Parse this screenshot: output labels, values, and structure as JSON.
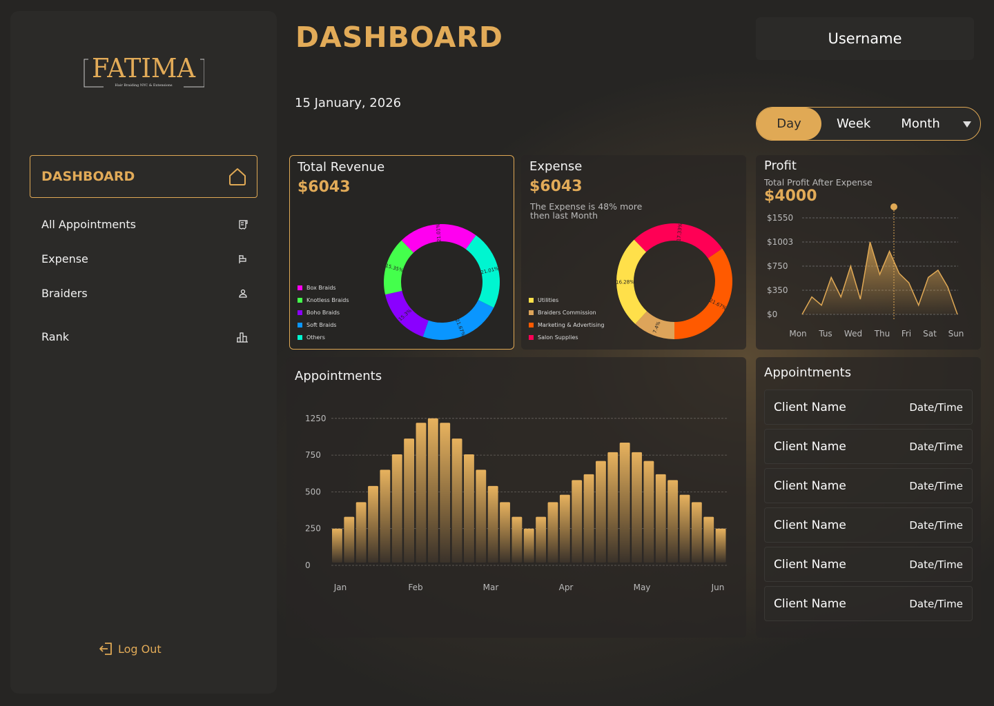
{
  "brand": {
    "logo_text": "FATIMA",
    "logo_tagline": "Hair Braiding NYC & Extensions"
  },
  "sidebar": {
    "active": "DASHBOARD",
    "items": [
      {
        "label": "All Appointments",
        "icon": "receipt-icon"
      },
      {
        "label": "Expense",
        "icon": "bars-icon"
      },
      {
        "label": "Braiders",
        "icon": "user-icon"
      },
      {
        "label": "Rank",
        "icon": "podium-icon"
      }
    ],
    "logout": "Log Out"
  },
  "header": {
    "title": "DASHBOARD",
    "date": "15 January, 2026",
    "username": "Username",
    "periods": [
      "Day",
      "Week",
      "Month"
    ],
    "selected_period": "Day"
  },
  "colors": {
    "accent": "#e0a955",
    "background": "#232221",
    "panel": "#2b2a28"
  },
  "revenue": {
    "title": "Total Revenue",
    "amount": "$6043"
  },
  "expense": {
    "title": "Expense",
    "amount": "$6043",
    "note_line1": "The Expense is 48% more",
    "note_line2": "then last Month"
  },
  "profit": {
    "title": "Profit",
    "subtitle": "Total Profit After Expense",
    "amount": "$4000"
  },
  "appointments_list": {
    "title": "Appointments",
    "rows": [
      {
        "name": "Client Name",
        "datetime": "Date/Time"
      },
      {
        "name": "Client Name",
        "datetime": "Date/Time"
      },
      {
        "name": "Client Name",
        "datetime": "Date/Time"
      },
      {
        "name": "Client Name",
        "datetime": "Date/Time"
      },
      {
        "name": "Client Name",
        "datetime": "Date/Time"
      },
      {
        "name": "Client Name",
        "datetime": "Date/Time"
      }
    ]
  },
  "chart_data": [
    {
      "type": "pie",
      "variant": "donut",
      "segments": [
        {
          "name": "Box Braids",
          "value": 21.01,
          "label": "21.01%",
          "color": "#ff00f0"
        },
        {
          "name": "Others",
          "value": 21.01,
          "label": "21.01%",
          "color": "#00f5d0"
        },
        {
          "name": "Soft Braids",
          "value": 21.67,
          "label": "21.67%",
          "color": "#0a96ff"
        },
        {
          "name": "Boho Braids",
          "value": 15.3,
          "label": "15.3%",
          "color": "#8a00ff"
        },
        {
          "name": "Knotless Braids",
          "value": 15.35,
          "label": "15.35%",
          "color": "#44ff4c"
        }
      ],
      "legend": [
        "Box Braids",
        "Knotless Braids",
        "Boho Braids",
        "Soft Braids",
        "Others"
      ],
      "legend_placement": "left"
    },
    {
      "type": "pie",
      "variant": "donut",
      "segments": [
        {
          "name": "Salon Supplies",
          "value": 17.33,
          "label": "17.33%",
          "color": "#ff0055"
        },
        {
          "name": "Marketing & Advertising",
          "value": 21.67,
          "label": "21.67%",
          "color": "#ff5a00"
        },
        {
          "name": "Braiders Commission",
          "value": 7.4,
          "label": "7.4%",
          "color": "#dda45a"
        },
        {
          "name": "Utilities",
          "value": 16.28,
          "label": "16.28%",
          "color": "#ffe04a"
        }
      ],
      "legend": [
        "Utilities",
        "Braiders Commission",
        "Marketing & Advertising",
        "Salon Supplies"
      ],
      "legend_placement": "left"
    },
    {
      "type": "area",
      "yticks": [
        "$0",
        "$350",
        "$750",
        "$1003",
        "$1550"
      ],
      "ytick_values": [
        0,
        350,
        750,
        1003,
        1550
      ],
      "xticks": [
        "Mon",
        "Tus",
        "Wed",
        "Thu",
        "Fri",
        "Sat",
        "Sun"
      ],
      "values": [
        0,
        253,
        133,
        563,
        253,
        750,
        220,
        1003,
        612,
        906,
        630,
        473,
        133,
        563,
        683,
        406,
        0
      ],
      "marker_day": "Thu",
      "grid": true,
      "color": "#e0a955"
    },
    {
      "type": "bar",
      "title": "Appointments",
      "yticks": [
        "0",
        "250",
        "500",
        "750",
        "1250"
      ],
      "ytick_values": [
        0,
        250,
        500,
        750,
        1250
      ],
      "xticks": [
        "Jan",
        "Feb",
        "Mar",
        "Apr",
        "May",
        "Jun"
      ],
      "values": [
        250,
        330,
        430,
        540,
        650,
        760,
        975,
        1190,
        1355,
        1190,
        975,
        760,
        650,
        540,
        430,
        330,
        250,
        330,
        430,
        480,
        580,
        620,
        710,
        790,
        920,
        790,
        710,
        620,
        580,
        480,
        430,
        330,
        250
      ],
      "grid": true,
      "color": "#e0a955"
    }
  ]
}
